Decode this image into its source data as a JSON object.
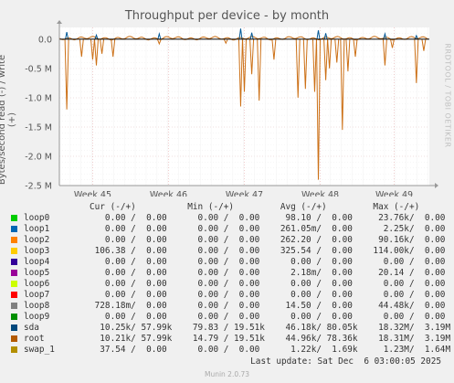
{
  "chart_data": {
    "type": "line",
    "title": "Throughput per device - by month",
    "ylabel": "Bytes/second read (-) / write (+)",
    "side_label": "RRDTOOL / TOBI OETIKER",
    "ylim": [
      -2500000,
      200000
    ],
    "y_ticks": [
      {
        "value": 0,
        "label": "0.0"
      },
      {
        "value": -500000,
        "label": "-0.5 M"
      },
      {
        "value": -1000000,
        "label": "-1.0 M"
      },
      {
        "value": -1500000,
        "label": "-1.5 M"
      },
      {
        "value": -2000000,
        "label": "-2.0 M"
      },
      {
        "value": -2500000,
        "label": "-2.5 M"
      }
    ],
    "x_ticks": [
      {
        "pos": 0.09,
        "label": "Week 45"
      },
      {
        "pos": 0.295,
        "label": "Week 46"
      },
      {
        "pos": 0.5,
        "label": "Week 47"
      },
      {
        "pos": 0.705,
        "label": "Week 48"
      },
      {
        "pos": 0.905,
        "label": "Week 49"
      }
    ],
    "spikes_read": [
      {
        "x": 0.02,
        "value": -1200000
      },
      {
        "x": 0.06,
        "value": -300000
      },
      {
        "x": 0.09,
        "value": -350000
      },
      {
        "x": 0.1,
        "value": -450000
      },
      {
        "x": 0.115,
        "value": -250000
      },
      {
        "x": 0.145,
        "value": -300000
      },
      {
        "x": 0.27,
        "value": -80000
      },
      {
        "x": 0.45,
        "value": -70000
      },
      {
        "x": 0.49,
        "value": -1150000
      },
      {
        "x": 0.5,
        "value": -900000
      },
      {
        "x": 0.52,
        "value": -600000
      },
      {
        "x": 0.54,
        "value": -1050000
      },
      {
        "x": 0.58,
        "value": -350000
      },
      {
        "x": 0.645,
        "value": -1000000
      },
      {
        "x": 0.665,
        "value": -850000
      },
      {
        "x": 0.69,
        "value": -900000
      },
      {
        "x": 0.7,
        "value": -2400000
      },
      {
        "x": 0.72,
        "value": -700000
      },
      {
        "x": 0.73,
        "value": -500000
      },
      {
        "x": 0.75,
        "value": -400000
      },
      {
        "x": 0.765,
        "value": -1550000
      },
      {
        "x": 0.78,
        "value": -550000
      },
      {
        "x": 0.8,
        "value": -300000
      },
      {
        "x": 0.88,
        "value": -450000
      },
      {
        "x": 0.9,
        "value": -150000
      },
      {
        "x": 0.965,
        "value": -750000
      },
      {
        "x": 0.985,
        "value": -200000
      }
    ],
    "spikes_write": [
      {
        "x": 0.02,
        "value": 120000
      },
      {
        "x": 0.1,
        "value": 70000
      },
      {
        "x": 0.27,
        "value": 90000
      },
      {
        "x": 0.49,
        "value": 180000
      },
      {
        "x": 0.52,
        "value": 110000
      },
      {
        "x": 0.7,
        "value": 150000
      },
      {
        "x": 0.72,
        "value": 100000
      },
      {
        "x": 0.88,
        "value": 90000
      },
      {
        "x": 0.965,
        "value": 60000
      }
    ],
    "series_colors": {
      "sda": "#005796",
      "root": "#cc7016",
      "swap_1": "#b8b800"
    }
  },
  "legend": {
    "header": "Cur (-/+)          Min (-/+)         Avg (-/+)         Max (-/+)",
    "rows": [
      {
        "name": "loop0",
        "color": "#00cc00",
        "values": "   0.00 /  0.00      0.00 /  0.00     98.10 /  0.00     23.76k/  0.00"
      },
      {
        "name": "loop1",
        "color": "#0066b3",
        "values": "   0.00 /  0.00      0.00 /  0.00    261.05m/  0.00      2.25k/  0.00"
      },
      {
        "name": "loop2",
        "color": "#ff8000",
        "values": "   0.00 /  0.00      0.00 /  0.00    262.20 /  0.00     90.16k/  0.00"
      },
      {
        "name": "loop3",
        "color": "#ffcc00",
        "values": " 106.38 /  0.00      0.00 /  0.00    325.54 /  0.00    114.00k/  0.00"
      },
      {
        "name": "loop4",
        "color": "#330099",
        "values": "   0.00 /  0.00      0.00 /  0.00      0.00 /  0.00      0.00 /  0.00"
      },
      {
        "name": "loop5",
        "color": "#990099",
        "values": "   0.00 /  0.00      0.00 /  0.00      2.18m/  0.00     20.14 /  0.00"
      },
      {
        "name": "loop6",
        "color": "#ccff00",
        "values": "   0.00 /  0.00      0.00 /  0.00      0.00 /  0.00      0.00 /  0.00"
      },
      {
        "name": "loop7",
        "color": "#ff0000",
        "values": "   0.00 /  0.00      0.00 /  0.00      0.00 /  0.00      0.00 /  0.00"
      },
      {
        "name": "loop8",
        "color": "#808080",
        "values": " 728.18m/  0.00      0.00 /  0.00     14.50 /  0.00     44.48k/  0.00"
      },
      {
        "name": "loop9",
        "color": "#008f00",
        "values": "   0.00 /  0.00      0.00 /  0.00      0.00 /  0.00      0.00 /  0.00"
      },
      {
        "name": "sda",
        "color": "#00487d",
        "values": "  10.25k/ 57.99k    79.83 / 19.51k    46.18k/ 80.05k    18.32M/  3.19M"
      },
      {
        "name": "root",
        "color": "#b35a00",
        "values": "  10.21k/ 57.99k    14.79 / 19.51k    44.96k/ 78.36k    18.31M/  3.19M"
      },
      {
        "name": "swap_1",
        "color": "#b38f00",
        "values": "  37.54 /  0.00      0.00 /  0.00      1.22k/  1.69k     1.23M/  1.64M"
      }
    ]
  },
  "last_update": "Last update: Sat Dec  6 03:00:05 2025",
  "footer": "Munin 2.0.73"
}
